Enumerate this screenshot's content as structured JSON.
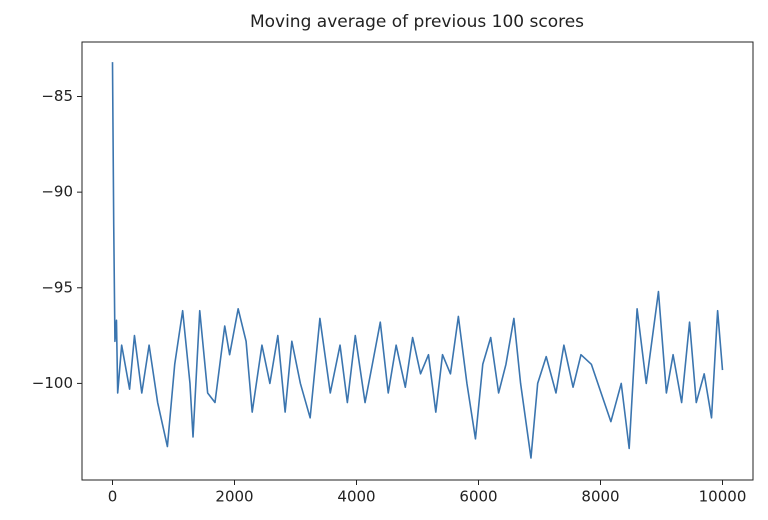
{
  "chart_data": {
    "type": "line",
    "title": "Moving average of previous 100 scores",
    "x": [
      0,
      20,
      40,
      65,
      85,
      150,
      280,
      360,
      480,
      600,
      740,
      900,
      1020,
      1150,
      1270,
      1320,
      1430,
      1560,
      1680,
      1840,
      1920,
      2060,
      2190,
      2290,
      2450,
      2580,
      2710,
      2830,
      2940,
      3080,
      3240,
      3400,
      3570,
      3730,
      3850,
      3980,
      4140,
      4260,
      4390,
      4520,
      4650,
      4800,
      4920,
      5050,
      5180,
      5300,
      5410,
      5540,
      5670,
      5810,
      5950,
      6070,
      6200,
      6330,
      6450,
      6580,
      6690,
      6860,
      6970,
      7110,
      7270,
      7400,
      7550,
      7680,
      7850,
      8010,
      8170,
      8340,
      8470,
      8600,
      8750,
      8950,
      9080,
      9190,
      9330,
      9460,
      9570,
      9700,
      9820,
      9920,
      10000
    ],
    "series": [
      {
        "color": "#3b75af",
        "values": [
          -83.2,
          -91.7,
          -97.8,
          -96.7,
          -100.5,
          -98,
          -100.3,
          -97.5,
          -100.5,
          -98,
          -101,
          -103.3,
          -99,
          -96.2,
          -100,
          -102.8,
          -96.2,
          -100.5,
          -101,
          -97,
          -98.5,
          -96.1,
          -97.8,
          -101.5,
          -98,
          -100,
          -97.5,
          -101.5,
          -97.8,
          -100,
          -101.8,
          -96.6,
          -100.5,
          -98,
          -101,
          -97.5,
          -101,
          -99,
          -96.8,
          -100.5,
          -98,
          -100.2,
          -97.6,
          -99.5,
          -98.5,
          -101.5,
          -98.5,
          -99.5,
          -96.5,
          -100,
          -102.9,
          -99,
          -97.6,
          -100.5,
          -99,
          -96.6,
          -100,
          -103.9,
          -100,
          -98.6,
          -100.5,
          -98,
          -100.2,
          -98.5,
          -99,
          -100.5,
          -102,
          -100,
          -103.4,
          -96.1,
          -100,
          -95.2,
          -100.5,
          -98.5,
          -101,
          -96.8,
          -101,
          -99.5,
          -101.8,
          -96.2,
          -99.3
        ]
      }
    ],
    "xlim": [
      -500,
      10500
    ],
    "xticks": [
      0,
      2000,
      4000,
      6000,
      8000,
      10000
    ],
    "ylim": [
      -105.05,
      -82.15
    ],
    "yticks": [
      {
        "value": -85,
        "label": "−85"
      },
      {
        "value": -90,
        "label": "−90"
      },
      {
        "value": -95,
        "label": "−95"
      },
      {
        "value": -100,
        "label": "−100"
      }
    ]
  }
}
